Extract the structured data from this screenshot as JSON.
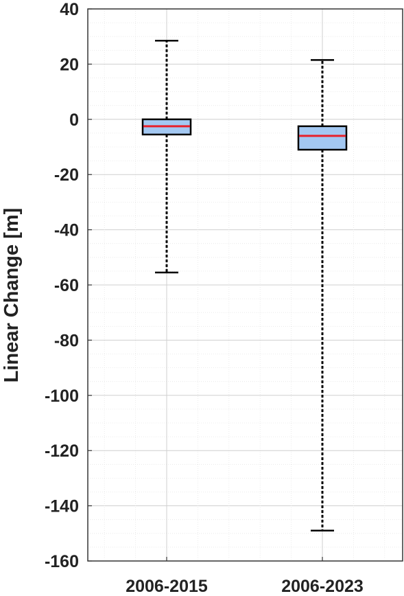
{
  "chart_data": {
    "type": "boxplot",
    "ylabel": "Linear Change [m]",
    "ylim": [
      -160,
      40
    ],
    "yticks": [
      40,
      20,
      0,
      -20,
      -40,
      -60,
      -80,
      -100,
      -120,
      -140,
      -160
    ],
    "grid": true,
    "minor_grid": true,
    "categories": [
      "2006-2015",
      "2006-2023"
    ],
    "boxes": [
      {
        "category": "2006-2015",
        "whisker_low": -55.5,
        "q1": -5.5,
        "median": -2.5,
        "q3": 0,
        "whisker_high": 28.5
      },
      {
        "category": "2006-2023",
        "whisker_low": -149,
        "q1": -11,
        "median": -6,
        "q3": -2.5,
        "whisker_high": 21.5
      }
    ],
    "colors": {
      "box_fill": "#a3c8f2",
      "median": "#e8202a",
      "whisker": "#000000",
      "grid": "#d9d9d9"
    }
  }
}
